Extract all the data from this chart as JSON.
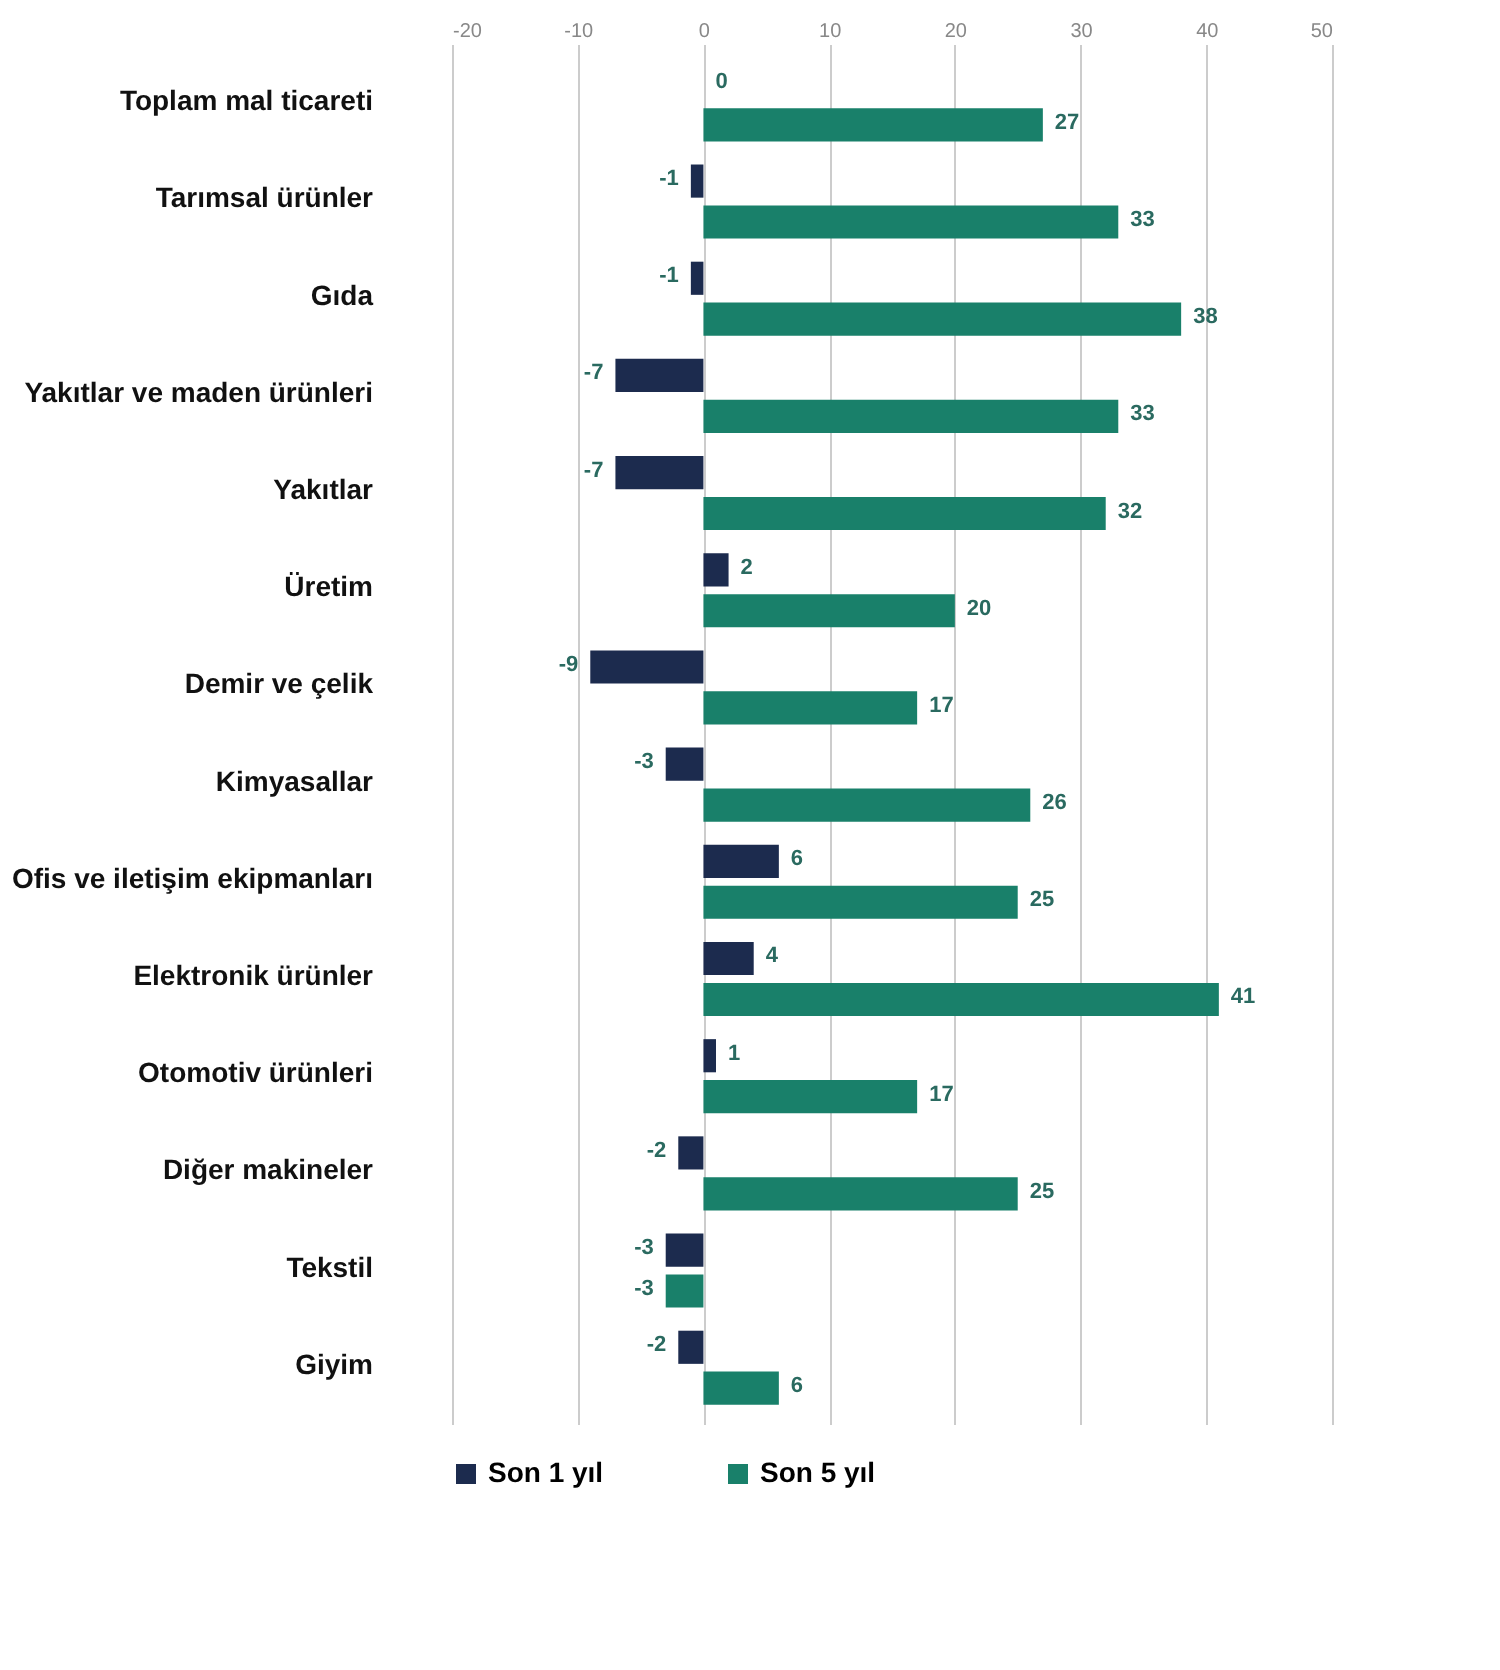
{
  "chart_data": {
    "type": "bar",
    "orientation": "horizontal",
    "categories": [
      "Toplam mal ticareti",
      "Tarımsal ürünler",
      "Gıda",
      "Yakıtlar ve maden ürünleri",
      "Yakıtlar",
      "Üretim",
      "Demir ve çelik",
      "Kimyasallar",
      "Ofis ve iletişim ekipmanları",
      "Elektronik ürünler",
      "Otomotiv ürünleri",
      "Diğer makineler",
      "Tekstil",
      "Giyim"
    ],
    "series": [
      {
        "name": "Son 1 yıl",
        "color": "#1c2b4e",
        "values": [
          0,
          -1,
          -1,
          -7,
          -7,
          2,
          -9,
          -3,
          6,
          4,
          1,
          -2,
          -3,
          -2
        ]
      },
      {
        "name": "Son 5 yıl",
        "color": "#19806a",
        "values": [
          27,
          33,
          38,
          33,
          32,
          20,
          17,
          26,
          25,
          41,
          17,
          25,
          -3,
          6
        ]
      }
    ],
    "xlim": [
      -20,
      50
    ],
    "xticks": [
      -20,
      -10,
      0,
      10,
      20,
      30,
      40,
      50
    ],
    "grid": "x",
    "legend": "bottom",
    "data_labels": true
  }
}
